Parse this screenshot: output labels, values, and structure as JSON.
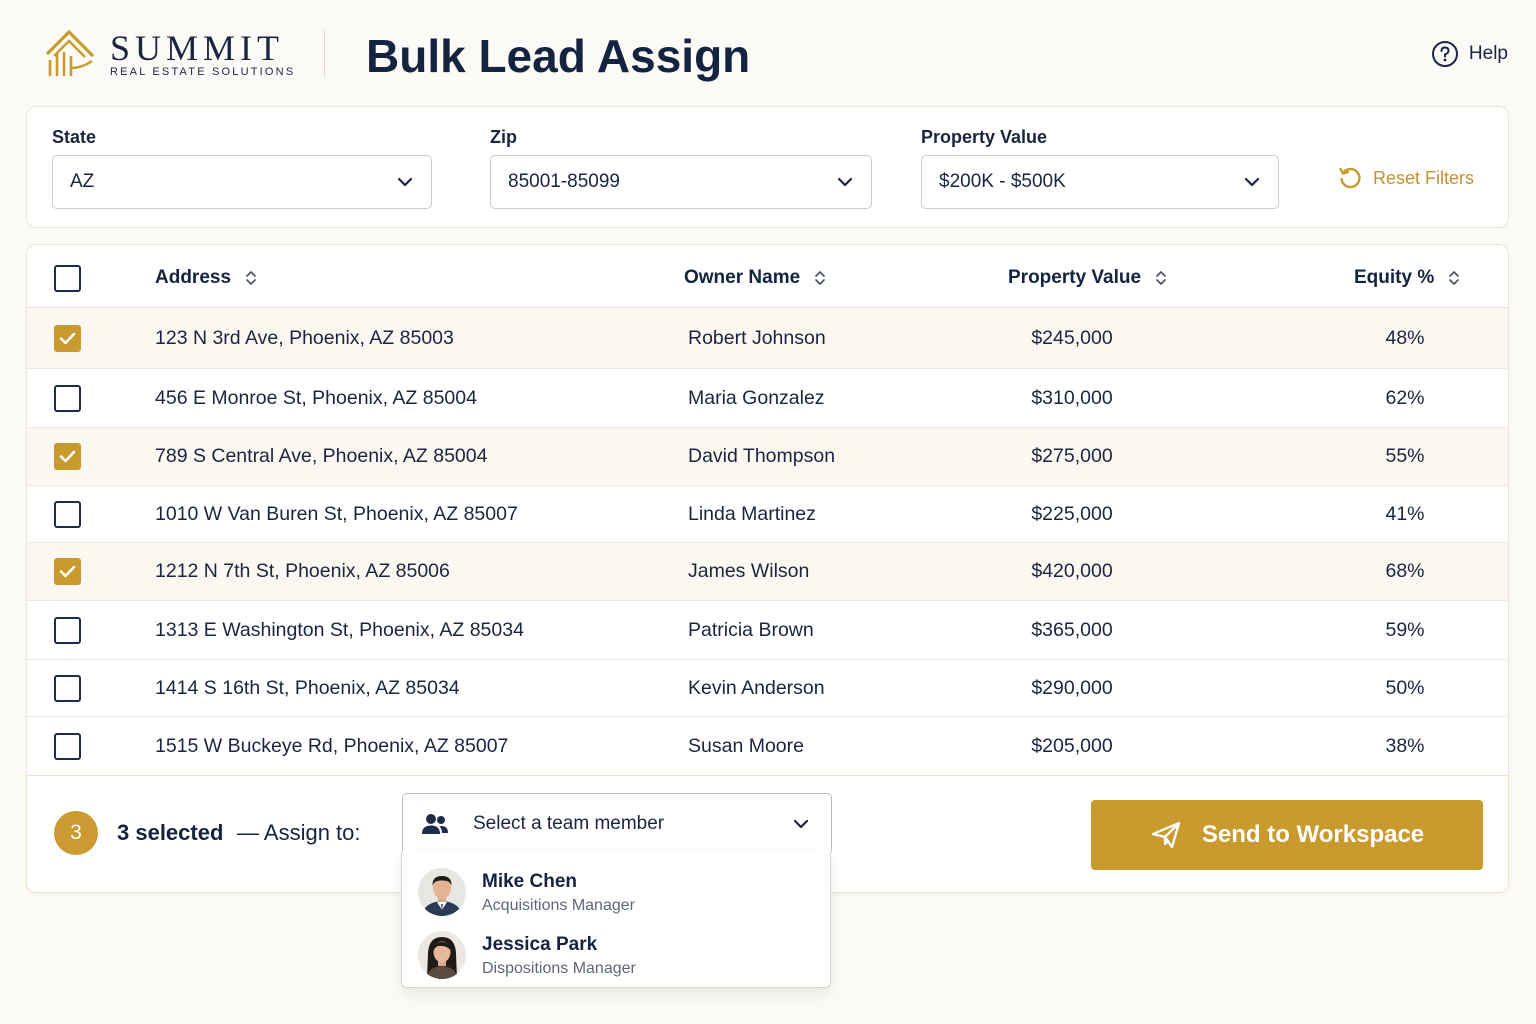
{
  "brand": {
    "name": "SUMMIT",
    "tagline": "REAL ESTATE SOLUTIONS",
    "accent": "#c99a2e"
  },
  "page": {
    "title": "Bulk Lead Assign"
  },
  "help": {
    "label": "Help",
    "icon": "question-circle-icon"
  },
  "filters": {
    "state": {
      "label": "State",
      "value": "AZ"
    },
    "zip": {
      "label": "Zip",
      "value": "85001-85099"
    },
    "property_value": {
      "label": "Property Value",
      "value": "$200K - $500K"
    },
    "reset_label": "Reset Filters"
  },
  "table": {
    "columns": {
      "address": "Address",
      "owner": "Owner Name",
      "value": "Property Value",
      "equity": "Equity %"
    },
    "rows": [
      {
        "checked": true,
        "address": "123 N 3rd Ave, Phoenix, AZ 85003",
        "owner": "Robert Johnson",
        "value": "$245,000",
        "equity": "48%"
      },
      {
        "checked": false,
        "address": "456 E Monroe St, Phoenix, AZ 85004",
        "owner": "Maria Gonzalez",
        "value": "$310,000",
        "equity": "62%"
      },
      {
        "checked": true,
        "address": "789 S Central Ave, Phoenix, AZ 85004",
        "owner": "David Thompson",
        "value": "$275,000",
        "equity": "55%"
      },
      {
        "checked": false,
        "address": "1010 W Van Buren St, Phoenix, AZ 85007",
        "owner": "Linda Martinez",
        "value": "$225,000",
        "equity": "41%"
      },
      {
        "checked": true,
        "address": "1212 N 7th St, Phoenix, AZ 85006",
        "owner": "James Wilson",
        "value": "$420,000",
        "equity": "68%"
      },
      {
        "checked": false,
        "address": "1313 E Washington St, Phoenix, AZ 85034",
        "owner": "Patricia Brown",
        "value": "$365,000",
        "equity": "59%"
      },
      {
        "checked": false,
        "address": "1414 S 16th St, Phoenix, AZ 85034",
        "owner": "Kevin Anderson",
        "value": "$290,000",
        "equity": "50%"
      },
      {
        "checked": false,
        "address": "1515 W Buckeye Rd, Phoenix, AZ 85007",
        "owner": "Susan Moore",
        "value": "$205,000",
        "equity": "38%"
      }
    ]
  },
  "bottom": {
    "count": "3",
    "selected_text": "3 selected",
    "assign_text": "— Assign to:",
    "member_placeholder": "Select a team member",
    "send_label": "Send to Workspace"
  },
  "dropdown": {
    "options": [
      {
        "name": "Mike Chen",
        "role": "Acquisitions Manager"
      },
      {
        "name": "Jessica Park",
        "role": "Dispositions Manager"
      }
    ]
  }
}
